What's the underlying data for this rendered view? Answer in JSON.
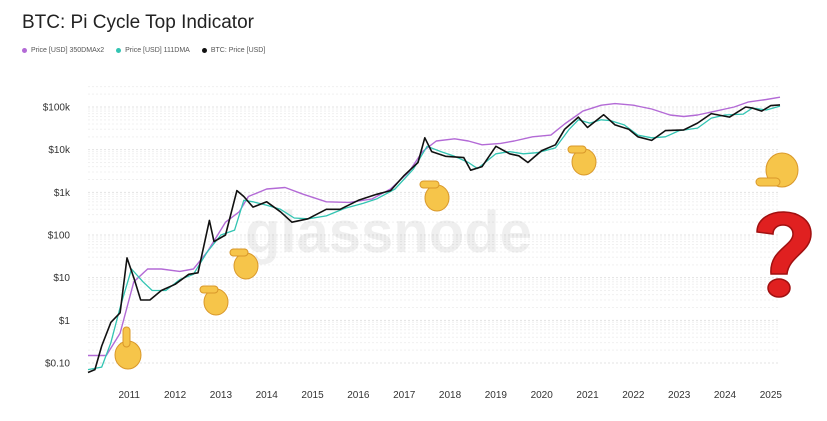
{
  "title": "BTC: Pi Cycle Top Indicator",
  "watermark": "glassnode",
  "chart_data": {
    "type": "line",
    "title": "BTC: Pi Cycle Top Indicator",
    "yscale": "log",
    "ylim": [
      0.05,
      250000
    ],
    "xlim": [
      2010.6,
      2025.7
    ],
    "grid": true,
    "legend": "top-left",
    "y_ticks": [
      {
        "label": "$0.10",
        "value": 0.1
      },
      {
        "label": "$1",
        "value": 1
      },
      {
        "label": "$10",
        "value": 10
      },
      {
        "label": "$100",
        "value": 100
      },
      {
        "label": "$1k",
        "value": 1000
      },
      {
        "label": "$10k",
        "value": 10000
      },
      {
        "label": "$100k",
        "value": 100000
      }
    ],
    "x_ticks": [
      "2011",
      "2012",
      "2013",
      "2014",
      "2015",
      "2016",
      "2017",
      "2018",
      "2019",
      "2020",
      "2021",
      "2022",
      "2023",
      "2024",
      "2025"
    ],
    "series": [
      {
        "name": "Price [USD] 350DMAx2",
        "color": "#b36ad6",
        "points": [
          [
            2010.6,
            0.15
          ],
          [
            2011.0,
            0.15
          ],
          [
            2011.3,
            0.5
          ],
          [
            2011.6,
            8
          ],
          [
            2011.9,
            16
          ],
          [
            2012.2,
            16
          ],
          [
            2012.6,
            14
          ],
          [
            2012.9,
            16
          ],
          [
            2013.2,
            40
          ],
          [
            2013.6,
            200
          ],
          [
            2013.9,
            350
          ],
          [
            2014.1,
            800
          ],
          [
            2014.5,
            1200
          ],
          [
            2014.9,
            1300
          ],
          [
            2015.3,
            900
          ],
          [
            2015.8,
            600
          ],
          [
            2016.3,
            580
          ],
          [
            2016.8,
            700
          ],
          [
            2017.2,
            1200
          ],
          [
            2017.6,
            3000
          ],
          [
            2017.9,
            9000
          ],
          [
            2018.2,
            16000
          ],
          [
            2018.6,
            18000
          ],
          [
            2018.9,
            16000
          ],
          [
            2019.2,
            13000
          ],
          [
            2019.6,
            14000
          ],
          [
            2019.9,
            16000
          ],
          [
            2020.3,
            20000
          ],
          [
            2020.7,
            22000
          ],
          [
            2021.0,
            40000
          ],
          [
            2021.4,
            80000
          ],
          [
            2021.8,
            110000
          ],
          [
            2022.1,
            120000
          ],
          [
            2022.5,
            110000
          ],
          [
            2022.9,
            90000
          ],
          [
            2023.3,
            65000
          ],
          [
            2023.6,
            60000
          ],
          [
            2023.9,
            65000
          ],
          [
            2024.3,
            80000
          ],
          [
            2024.7,
            100000
          ],
          [
            2025.0,
            130000
          ],
          [
            2025.4,
            150000
          ],
          [
            2025.7,
            170000
          ]
        ]
      },
      {
        "name": "Price [USD] 111DMA",
        "color": "#32c4b2",
        "points": [
          [
            2010.6,
            0.07
          ],
          [
            2010.9,
            0.08
          ],
          [
            2011.1,
            0.3
          ],
          [
            2011.3,
            2
          ],
          [
            2011.55,
            16
          ],
          [
            2011.8,
            8
          ],
          [
            2012.0,
            5
          ],
          [
            2012.3,
            5
          ],
          [
            2012.6,
            9
          ],
          [
            2012.9,
            12
          ],
          [
            2013.2,
            40
          ],
          [
            2013.5,
            100
          ],
          [
            2013.8,
            130
          ],
          [
            2014.0,
            650
          ],
          [
            2014.2,
            600
          ],
          [
            2014.5,
            500
          ],
          [
            2014.8,
            400
          ],
          [
            2015.1,
            250
          ],
          [
            2015.4,
            240
          ],
          [
            2015.8,
            280
          ],
          [
            2016.2,
            420
          ],
          [
            2016.6,
            550
          ],
          [
            2016.9,
            700
          ],
          [
            2017.3,
            1200
          ],
          [
            2017.7,
            3500
          ],
          [
            2018.0,
            12000
          ],
          [
            2018.3,
            9000
          ],
          [
            2018.6,
            7000
          ],
          [
            2018.9,
            5000
          ],
          [
            2019.1,
            3600
          ],
          [
            2019.5,
            8000
          ],
          [
            2019.8,
            9000
          ],
          [
            2020.1,
            8000
          ],
          [
            2020.4,
            8500
          ],
          [
            2020.8,
            11000
          ],
          [
            2021.1,
            30000
          ],
          [
            2021.3,
            50000
          ],
          [
            2021.55,
            42000
          ],
          [
            2021.8,
            50000
          ],
          [
            2022.0,
            48000
          ],
          [
            2022.3,
            38000
          ],
          [
            2022.6,
            22000
          ],
          [
            2022.9,
            19000
          ],
          [
            2023.2,
            20000
          ],
          [
            2023.5,
            28000
          ],
          [
            2023.9,
            32000
          ],
          [
            2024.2,
            55000
          ],
          [
            2024.5,
            65000
          ],
          [
            2024.9,
            68000
          ],
          [
            2025.1,
            95000
          ],
          [
            2025.4,
            85000
          ],
          [
            2025.7,
            105000
          ]
        ]
      },
      {
        "name": "BTC: Price [USD]",
        "color": "#111111",
        "points": [
          [
            2010.6,
            0.06
          ],
          [
            2010.75,
            0.07
          ],
          [
            2010.9,
            0.25
          ],
          [
            2011.1,
            0.9
          ],
          [
            2011.3,
            1.5
          ],
          [
            2011.45,
            29
          ],
          [
            2011.6,
            10
          ],
          [
            2011.75,
            3
          ],
          [
            2011.95,
            3
          ],
          [
            2012.2,
            5
          ],
          [
            2012.5,
            7
          ],
          [
            2012.8,
            12
          ],
          [
            2013.0,
            13
          ],
          [
            2013.25,
            220
          ],
          [
            2013.35,
            70
          ],
          [
            2013.6,
            100
          ],
          [
            2013.85,
            1100
          ],
          [
            2014.0,
            800
          ],
          [
            2014.2,
            450
          ],
          [
            2014.5,
            600
          ],
          [
            2014.8,
            350
          ],
          [
            2015.05,
            200
          ],
          [
            2015.4,
            240
          ],
          [
            2015.8,
            400
          ],
          [
            2016.1,
            400
          ],
          [
            2016.5,
            650
          ],
          [
            2016.9,
            900
          ],
          [
            2017.2,
            1100
          ],
          [
            2017.5,
            2500
          ],
          [
            2017.8,
            5000
          ],
          [
            2017.95,
            19000
          ],
          [
            2018.1,
            9000
          ],
          [
            2018.4,
            7000
          ],
          [
            2018.8,
            6500
          ],
          [
            2018.95,
            3300
          ],
          [
            2019.2,
            4000
          ],
          [
            2019.5,
            12000
          ],
          [
            2019.8,
            8000
          ],
          [
            2020.0,
            7200
          ],
          [
            2020.2,
            5000
          ],
          [
            2020.5,
            9500
          ],
          [
            2020.8,
            13000
          ],
          [
            2021.0,
            30000
          ],
          [
            2021.3,
            58000
          ],
          [
            2021.5,
            33000
          ],
          [
            2021.85,
            66000
          ],
          [
            2022.1,
            38000
          ],
          [
            2022.4,
            30000
          ],
          [
            2022.6,
            20000
          ],
          [
            2022.9,
            16500
          ],
          [
            2023.2,
            28000
          ],
          [
            2023.6,
            29000
          ],
          [
            2023.9,
            42000
          ],
          [
            2024.2,
            70000
          ],
          [
            2024.6,
            58000
          ],
          [
            2024.95,
            100000
          ],
          [
            2025.1,
            94000
          ],
          [
            2025.3,
            80000
          ],
          [
            2025.5,
            108000
          ],
          [
            2025.7,
            112000
          ]
        ]
      }
    ]
  }
}
